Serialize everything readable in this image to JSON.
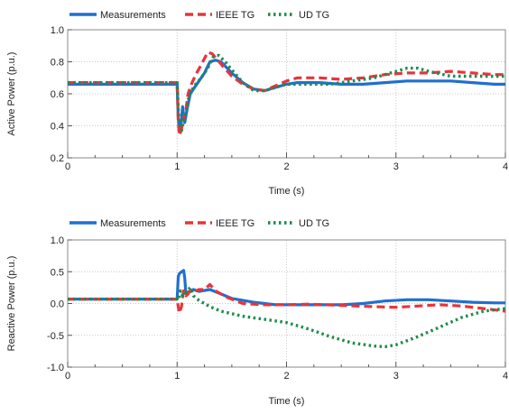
{
  "chart_data": [
    {
      "type": "line",
      "xlabel": "Time (s)",
      "ylabel": "Active Power (p.u.)",
      "xlim": [
        0,
        4
      ],
      "ylim": [
        0.2,
        1.0
      ],
      "xticks": [
        "0",
        "1",
        "2",
        "3",
        "4"
      ],
      "yticks": [
        "0.2",
        "0.4",
        "0.6",
        "0.8",
        "1.0"
      ],
      "grid": true,
      "legend": "top-left",
      "series": [
        {
          "name": "Measurements",
          "color": "#1f6fd0",
          "style": "solid",
          "x": [
            0,
            1.0,
            1.01,
            1.02,
            1.03,
            1.05,
            1.07,
            1.09,
            1.12,
            1.15,
            1.2,
            1.25,
            1.3,
            1.35,
            1.4,
            1.5,
            1.6,
            1.7,
            1.8,
            1.9,
            2.0,
            2.1,
            2.3,
            2.5,
            2.7,
            2.9,
            3.1,
            3.3,
            3.5,
            3.7,
            3.9,
            4.0
          ],
          "y": [
            0.66,
            0.66,
            0.45,
            0.37,
            0.36,
            0.52,
            0.42,
            0.5,
            0.6,
            0.63,
            0.68,
            0.73,
            0.8,
            0.81,
            0.8,
            0.73,
            0.67,
            0.63,
            0.62,
            0.64,
            0.66,
            0.67,
            0.67,
            0.66,
            0.66,
            0.67,
            0.68,
            0.68,
            0.68,
            0.67,
            0.66,
            0.66
          ]
        },
        {
          "name": "IEEE TG",
          "color": "#e8343c",
          "style": "dashed",
          "x": [
            0,
            1.0,
            1.01,
            1.02,
            1.04,
            1.06,
            1.08,
            1.1,
            1.13,
            1.17,
            1.22,
            1.28,
            1.32,
            1.36,
            1.42,
            1.5,
            1.6,
            1.7,
            1.8,
            1.9,
            2.0,
            2.1,
            2.3,
            2.5,
            2.7,
            2.9,
            3.1,
            3.3,
            3.5,
            3.7,
            3.9,
            4.0
          ],
          "y": [
            0.67,
            0.67,
            0.43,
            0.34,
            0.38,
            0.45,
            0.5,
            0.6,
            0.66,
            0.72,
            0.78,
            0.86,
            0.85,
            0.82,
            0.77,
            0.71,
            0.66,
            0.63,
            0.62,
            0.65,
            0.68,
            0.7,
            0.7,
            0.69,
            0.7,
            0.72,
            0.73,
            0.73,
            0.74,
            0.73,
            0.72,
            0.72
          ]
        },
        {
          "name": "UD TG",
          "color": "#1e8b4a",
          "style": "dotted",
          "x": [
            0,
            1.0,
            1.01,
            1.02,
            1.04,
            1.06,
            1.08,
            1.1,
            1.13,
            1.17,
            1.22,
            1.28,
            1.33,
            1.38,
            1.44,
            1.5,
            1.6,
            1.7,
            1.8,
            1.9,
            2.0,
            2.2,
            2.4,
            2.6,
            2.8,
            3.0,
            3.1,
            3.2,
            3.3,
            3.5,
            3.7,
            3.9,
            4.0
          ],
          "y": [
            0.67,
            0.67,
            0.5,
            0.42,
            0.37,
            0.44,
            0.48,
            0.56,
            0.62,
            0.66,
            0.7,
            0.76,
            0.83,
            0.84,
            0.8,
            0.75,
            0.67,
            0.62,
            0.62,
            0.64,
            0.66,
            0.66,
            0.66,
            0.68,
            0.7,
            0.74,
            0.76,
            0.76,
            0.74,
            0.71,
            0.71,
            0.71,
            0.71
          ]
        }
      ]
    },
    {
      "type": "line",
      "xlabel": "Time (s)",
      "ylabel": "Reactive Power (p.u.)",
      "xlim": [
        0,
        4
      ],
      "ylim": [
        -1.0,
        1.0
      ],
      "xticks": [
        "0",
        "1",
        "2",
        "3",
        "4"
      ],
      "yticks": [
        "-1.0",
        "-0.5",
        "0.0",
        "0.5",
        "1.0"
      ],
      "grid": true,
      "legend": "top-left",
      "series": [
        {
          "name": "Measurements",
          "color": "#1f6fd0",
          "style": "solid",
          "x": [
            0,
            1.0,
            1.01,
            1.02,
            1.04,
            1.06,
            1.07,
            1.08,
            1.1,
            1.15,
            1.2,
            1.3,
            1.4,
            1.5,
            1.7,
            1.9,
            2.1,
            2.3,
            2.5,
            2.7,
            2.9,
            3.1,
            3.3,
            3.5,
            3.7,
            3.9,
            4.0
          ],
          "y": [
            0.07,
            0.07,
            0.42,
            0.47,
            0.5,
            0.52,
            0.4,
            0.15,
            0.18,
            0.22,
            0.19,
            0.22,
            0.15,
            0.08,
            0.02,
            -0.02,
            -0.02,
            -0.02,
            -0.02,
            0.0,
            0.04,
            0.06,
            0.06,
            0.04,
            0.02,
            0.01,
            0.01
          ]
        },
        {
          "name": "IEEE TG",
          "color": "#e8343c",
          "style": "dashed",
          "x": [
            0,
            1.0,
            1.01,
            1.02,
            1.04,
            1.05,
            1.06,
            1.08,
            1.1,
            1.12,
            1.15,
            1.2,
            1.25,
            1.3,
            1.35,
            1.45,
            1.6,
            1.8,
            2.0,
            2.2,
            2.5,
            2.8,
            3.0,
            3.2,
            3.4,
            3.6,
            3.8,
            4.0
          ],
          "y": [
            0.07,
            0.07,
            -0.05,
            -0.15,
            -0.05,
            0.1,
            0.2,
            0.12,
            0.15,
            0.2,
            0.18,
            0.22,
            0.22,
            0.3,
            0.2,
            0.1,
            0.0,
            -0.02,
            -0.02,
            -0.01,
            -0.03,
            -0.05,
            -0.06,
            -0.04,
            -0.02,
            -0.04,
            -0.08,
            -0.12
          ]
        },
        {
          "name": "UD TG",
          "color": "#1e8b4a",
          "style": "dotted",
          "x": [
            0,
            1.0,
            1.01,
            1.03,
            1.05,
            1.08,
            1.12,
            1.15,
            1.2,
            1.3,
            1.4,
            1.6,
            1.8,
            2.0,
            2.2,
            2.4,
            2.6,
            2.8,
            2.9,
            3.0,
            3.2,
            3.4,
            3.6,
            3.8,
            4.0
          ],
          "y": [
            0.07,
            0.07,
            0.05,
            0.2,
            0.12,
            0.18,
            0.25,
            0.12,
            0.05,
            -0.05,
            -0.12,
            -0.2,
            -0.25,
            -0.3,
            -0.4,
            -0.52,
            -0.62,
            -0.67,
            -0.68,
            -0.65,
            -0.52,
            -0.37,
            -0.22,
            -0.12,
            -0.08
          ]
        }
      ]
    }
  ]
}
